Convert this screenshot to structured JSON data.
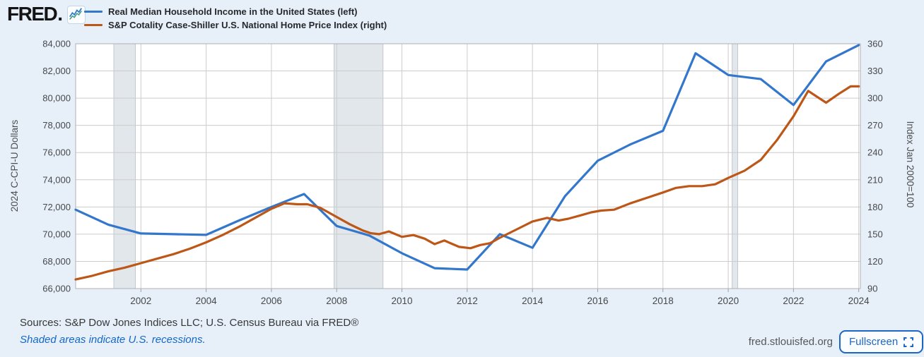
{
  "logo": {
    "text": "FRED",
    "suffix": "."
  },
  "footer": {
    "sources": "Sources: S&P Dow Jones Indices LLC; U.S. Census Bureau via FRED®",
    "recession_note": "Shaded areas indicate U.S. recessions.",
    "site": "fred.stlouisfed.org",
    "fullscreen_label": "Fullscreen"
  },
  "chart_data": {
    "type": "line",
    "legend_position": "top-left",
    "background_color": "#e7f0f9",
    "plot_background_color": "#ffffff",
    "gridline_color": "#cccccc",
    "border_color": "#aeb1b4",
    "recession_color": "#e2e7eb",
    "recession_edge_color": "#c2c9cf",
    "x_axis": {
      "min": 2000,
      "max": 2024.05,
      "tick_years": [
        2002,
        2004,
        2006,
        2008,
        2010,
        2012,
        2014,
        2016,
        2018,
        2020,
        2022,
        2024
      ]
    },
    "left_axis": {
      "title": "2024 C-CPI-U Dollars",
      "min": 66000,
      "max": 84000,
      "tick_values": [
        66000,
        68000,
        70000,
        72000,
        74000,
        76000,
        78000,
        80000,
        82000,
        84000
      ],
      "tick_labels": [
        "66,000",
        "68,000",
        "70,000",
        "72,000",
        "74,000",
        "76,000",
        "78,000",
        "80,000",
        "82,000",
        "84,000"
      ]
    },
    "right_axis": {
      "title": "Index Jan 2000=100",
      "min": 90,
      "max": 360,
      "tick_values": [
        90,
        120,
        150,
        180,
        210,
        240,
        270,
        300,
        330,
        360
      ],
      "tick_labels": [
        "90",
        "120",
        "150",
        "180",
        "210",
        "240",
        "270",
        "300",
        "330",
        "360"
      ]
    },
    "recessions": [
      [
        2001.17,
        2001.83
      ],
      [
        2007.92,
        2009.42
      ],
      [
        2020.12,
        2020.29
      ]
    ],
    "series": [
      {
        "id": "real-median-income",
        "name": "Real Median Household Income in the United States (left)",
        "axis": "left",
        "color": "#3377cc",
        "frequency": "annual",
        "data": [
          [
            2000,
            71800
          ],
          [
            2001,
            70700
          ],
          [
            2002,
            70050
          ],
          [
            2003,
            70000
          ],
          [
            2004,
            69950
          ],
          [
            2005,
            71000
          ],
          [
            2006,
            72000
          ],
          [
            2007,
            72950
          ],
          [
            2008,
            70600
          ],
          [
            2009,
            69900
          ],
          [
            2010,
            68600
          ],
          [
            2011,
            67500
          ],
          [
            2012,
            67400
          ],
          [
            2013,
            70000
          ],
          [
            2014,
            69000
          ],
          [
            2015,
            72800
          ],
          [
            2016,
            75400
          ],
          [
            2017,
            76600
          ],
          [
            2018,
            77600
          ],
          [
            2019,
            83300
          ],
          [
            2020,
            81700
          ],
          [
            2021,
            81400
          ],
          [
            2022,
            79500
          ],
          [
            2023,
            82700
          ],
          [
            2024,
            83900
          ]
        ]
      },
      {
        "id": "case-shiller-home-price-index",
        "name": "S&P Cotality Case-Shiller U.S. National Home Price Index (right)",
        "axis": "right",
        "color": "#bd5717",
        "frequency": "monthly",
        "data": [
          [
            2000.0,
            100
          ],
          [
            2000.5,
            104
          ],
          [
            2001.0,
            109
          ],
          [
            2001.5,
            113
          ],
          [
            2002.0,
            118
          ],
          [
            2002.5,
            123
          ],
          [
            2003.0,
            128
          ],
          [
            2003.5,
            134
          ],
          [
            2004.0,
            141
          ],
          [
            2004.5,
            149
          ],
          [
            2005.0,
            158
          ],
          [
            2005.5,
            168
          ],
          [
            2006.0,
            178
          ],
          [
            2006.4,
            184
          ],
          [
            2006.8,
            183
          ],
          [
            2007.1,
            183
          ],
          [
            2007.5,
            179
          ],
          [
            2008.0,
            169
          ],
          [
            2008.4,
            161
          ],
          [
            2008.8,
            154
          ],
          [
            2009.05,
            151
          ],
          [
            2009.3,
            150
          ],
          [
            2009.6,
            153
          ],
          [
            2010.0,
            147
          ],
          [
            2010.35,
            149
          ],
          [
            2010.7,
            145
          ],
          [
            2011.0,
            139
          ],
          [
            2011.3,
            143
          ],
          [
            2011.75,
            136
          ],
          [
            2012.1,
            134.5
          ],
          [
            2012.4,
            138
          ],
          [
            2012.7,
            140
          ],
          [
            2013.0,
            146
          ],
          [
            2013.5,
            155
          ],
          [
            2014.0,
            164
          ],
          [
            2014.45,
            168
          ],
          [
            2014.8,
            165
          ],
          [
            2015.1,
            167
          ],
          [
            2015.5,
            171
          ],
          [
            2015.8,
            174
          ],
          [
            2016.1,
            176
          ],
          [
            2016.5,
            177
          ],
          [
            2017.0,
            184
          ],
          [
            2017.5,
            190
          ],
          [
            2018.0,
            196
          ],
          [
            2018.4,
            201
          ],
          [
            2018.8,
            203
          ],
          [
            2019.2,
            203
          ],
          [
            2019.6,
            205
          ],
          [
            2020.0,
            212
          ],
          [
            2020.5,
            220
          ],
          [
            2021.0,
            232
          ],
          [
            2021.5,
            254
          ],
          [
            2022.0,
            280
          ],
          [
            2022.45,
            308
          ],
          [
            2022.7,
            302
          ],
          [
            2023.0,
            295
          ],
          [
            2023.4,
            305
          ],
          [
            2023.75,
            313
          ],
          [
            2024.0,
            313
          ]
        ]
      }
    ]
  }
}
